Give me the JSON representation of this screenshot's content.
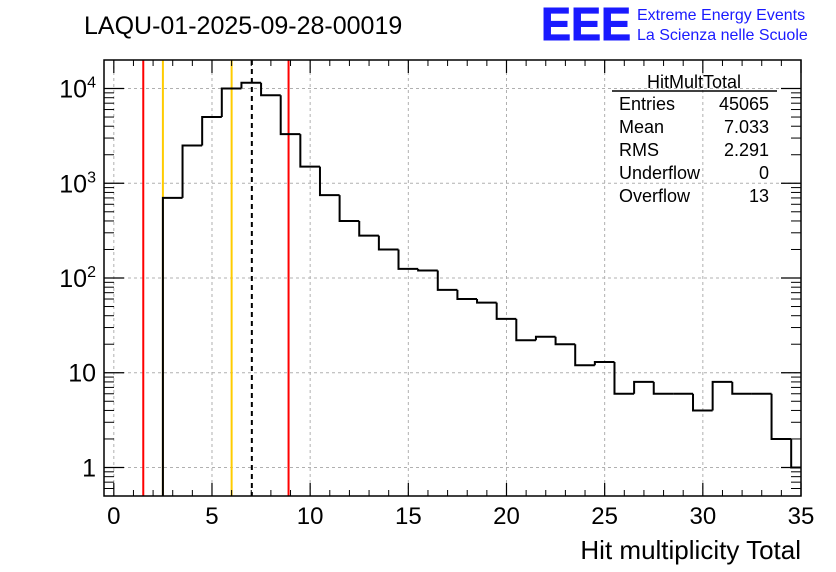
{
  "header": {
    "run_title": "LAQU-01-2025-09-28-00019",
    "logo_text": "EEE",
    "logo_line1": "Extreme Energy Events",
    "logo_line2": "La Scienza nelle Scuole",
    "logo_color": "#1a1aff"
  },
  "stats": {
    "title": "HitMultTotal",
    "rows": [
      {
        "label": "Entries",
        "value": "45065"
      },
      {
        "label": "Mean",
        "value": "7.033"
      },
      {
        "label": "RMS",
        "value": "2.291"
      },
      {
        "label": "Underflow",
        "value": "0"
      },
      {
        "label": "Overflow",
        "value": "13"
      }
    ]
  },
  "chart_data": {
    "type": "histogram",
    "title": "LAQU-01-2025-09-28-00019",
    "xlabel": "Hit multiplicity Total",
    "ylabel": "",
    "xlim": [
      -0.5,
      35
    ],
    "ylim": [
      0.5,
      20000
    ],
    "yscale": "log",
    "grid": true,
    "bin_width": 1,
    "bins": [
      {
        "x": 0,
        "count": 0
      },
      {
        "x": 1,
        "count": 0
      },
      {
        "x": 2,
        "count": 0
      },
      {
        "x": 3,
        "count": 700
      },
      {
        "x": 4,
        "count": 2500
      },
      {
        "x": 5,
        "count": 5000
      },
      {
        "x": 6,
        "count": 10000
      },
      {
        "x": 7,
        "count": 11500
      },
      {
        "x": 8,
        "count": 8500
      },
      {
        "x": 9,
        "count": 3300
      },
      {
        "x": 10,
        "count": 1500
      },
      {
        "x": 11,
        "count": 750
      },
      {
        "x": 12,
        "count": 400
      },
      {
        "x": 13,
        "count": 280
      },
      {
        "x": 14,
        "count": 200
      },
      {
        "x": 15,
        "count": 125
      },
      {
        "x": 16,
        "count": 120
      },
      {
        "x": 17,
        "count": 75
      },
      {
        "x": 18,
        "count": 60
      },
      {
        "x": 19,
        "count": 55
      },
      {
        "x": 20,
        "count": 37
      },
      {
        "x": 21,
        "count": 22
      },
      {
        "x": 22,
        "count": 24
      },
      {
        "x": 23,
        "count": 20
      },
      {
        "x": 24,
        "count": 12
      },
      {
        "x": 25,
        "count": 13
      },
      {
        "x": 26,
        "count": 6
      },
      {
        "x": 27,
        "count": 8
      },
      {
        "x": 28,
        "count": 6
      },
      {
        "x": 29,
        "count": 6
      },
      {
        "x": 30,
        "count": 4
      },
      {
        "x": 31,
        "count": 8
      },
      {
        "x": 32,
        "count": 6
      },
      {
        "x": 33,
        "count": 6
      },
      {
        "x": 34,
        "count": 2
      },
      {
        "x": 35,
        "count": 1
      }
    ],
    "x_ticks": [
      "0",
      "5",
      "10",
      "15",
      "20",
      "25",
      "30",
      "35"
    ],
    "x_tick_values": [
      0,
      5,
      10,
      15,
      20,
      25,
      30,
      35
    ],
    "y_ticks": [
      {
        "value": 1,
        "base": "1",
        "exp": ""
      },
      {
        "value": 10,
        "base": "10",
        "exp": ""
      },
      {
        "value": 100,
        "base": "10",
        "exp": "2"
      },
      {
        "value": 1000,
        "base": "10",
        "exp": "3"
      },
      {
        "value": 10000,
        "base": "10",
        "exp": "4"
      }
    ],
    "vertical_lines": [
      {
        "x": 1.5,
        "color": "#ff0000",
        "style": "solid"
      },
      {
        "x": 2.5,
        "color": "#ffcc00",
        "style": "solid"
      },
      {
        "x": 6.0,
        "color": "#ffcc00",
        "style": "solid"
      },
      {
        "x": 7.03,
        "color": "#000000",
        "style": "dashed"
      },
      {
        "x": 8.9,
        "color": "#ff0000",
        "style": "solid"
      }
    ]
  }
}
